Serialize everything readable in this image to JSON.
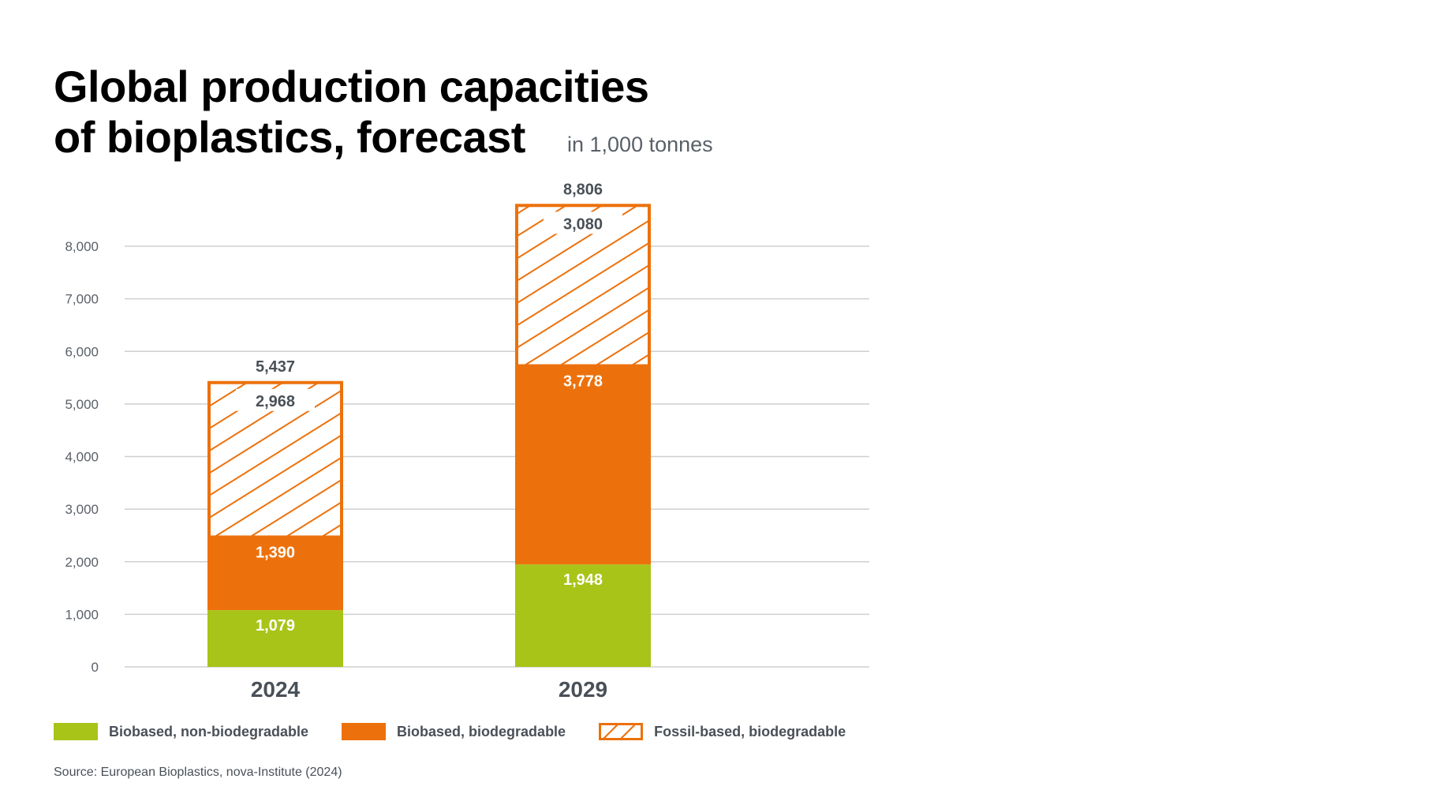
{
  "chart_data": {
    "type": "bar",
    "stacked": true,
    "title": "Global production capacities of bioplastics, forecast",
    "title_lines": [
      "Global production capacities",
      "of bioplastics, forecast"
    ],
    "subtitle": "in 1,000 tonnes",
    "categories": [
      "2024",
      "2029"
    ],
    "series": [
      {
        "name": "Biobased, non-biodegradable",
        "values": [
          1079,
          1948
        ],
        "labels": [
          "1,079",
          "1,948"
        ],
        "color": "#a8c418",
        "pattern": "solid"
      },
      {
        "name": "Biobased, biodegradable",
        "values": [
          1390,
          3778
        ],
        "labels": [
          "1,390",
          "3,778"
        ],
        "color": "#ec710c",
        "pattern": "solid"
      },
      {
        "name": "Fossil-based, biodegradable",
        "values": [
          2968,
          3080
        ],
        "labels": [
          "2,968",
          "3,080"
        ],
        "color": "#ec710c",
        "pattern": "hatched"
      }
    ],
    "totals": [
      5437,
      8806
    ],
    "total_labels": [
      "5,437",
      "8,806"
    ],
    "ylim": [
      0,
      8000
    ],
    "yticks": [
      "0",
      "1,000",
      "2,000",
      "3,000",
      "4,000",
      "5,000",
      "6,000",
      "7,000",
      "8,000"
    ],
    "ytick_values": [
      0,
      1000,
      2000,
      3000,
      4000,
      5000,
      6000,
      7000,
      8000
    ],
    "xlabel": "",
    "ylabel": "",
    "grid": true,
    "legend_position": "bottom",
    "source": "Source: European Bioplastics, nova-Institute (2024)"
  },
  "colors": {
    "text_dark": "#4a5058",
    "grid": "#cfcfcf",
    "label_light": "#ffffff"
  }
}
